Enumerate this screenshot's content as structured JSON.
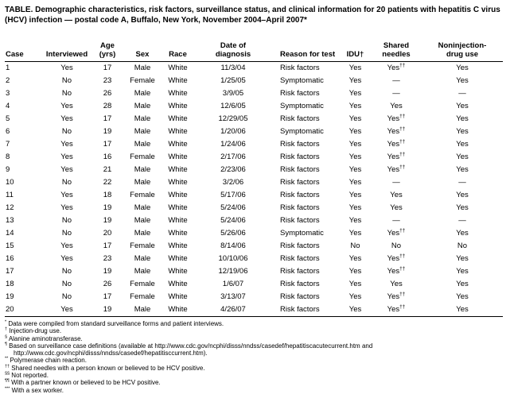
{
  "colors": {
    "text": "#000000",
    "background": "#ffffff",
    "rule": "#000000"
  },
  "title": "TABLE. Demographic characteristics, risk factors, surveillance status, and clinical information for 20 patients with hepatitis C virus (HCV) infection — postal code A, Buffalo, New York, November 2004–April 2007*",
  "table": {
    "headers": [
      "Case",
      "Interviewed",
      "Age\n(yrs)",
      "Sex",
      "Race",
      "Date of\ndiagnosis",
      "Reason for test",
      "IDU†",
      "Shared\nneedles",
      "Noninjection-\ndrug use"
    ],
    "column_aligns": [
      "left",
      "center",
      "center",
      "center",
      "center",
      "center",
      "left-indent",
      "center",
      "center",
      "center"
    ],
    "rows": [
      [
        "1",
        "Yes",
        "17",
        "Male",
        "White",
        "11/3/04",
        "Risk factors",
        "Yes",
        "Yes††",
        "Yes"
      ],
      [
        "2",
        "No",
        "23",
        "Female",
        "White",
        "1/25/05",
        "Symptomatic",
        "Yes",
        "—",
        "Yes"
      ],
      [
        "3",
        "No",
        "26",
        "Male",
        "White",
        "3/9/05",
        "Risk factors",
        "Yes",
        "—",
        "—"
      ],
      [
        "4",
        "Yes",
        "28",
        "Male",
        "White",
        "12/6/05",
        "Symptomatic",
        "Yes",
        "Yes",
        "Yes"
      ],
      [
        "5",
        "Yes",
        "17",
        "Male",
        "White",
        "12/29/05",
        "Risk factors",
        "Yes",
        "Yes††",
        "Yes"
      ],
      [
        "6",
        "No",
        "19",
        "Male",
        "White",
        "1/20/06",
        "Symptomatic",
        "Yes",
        "Yes††",
        "Yes"
      ],
      [
        "7",
        "Yes",
        "17",
        "Male",
        "White",
        "1/24/06",
        "Risk factors",
        "Yes",
        "Yes††",
        "Yes"
      ],
      [
        "8",
        "Yes",
        "16",
        "Female",
        "White",
        "2/17/06",
        "Risk factors",
        "Yes",
        "Yes††",
        "Yes"
      ],
      [
        "9",
        "Yes",
        "21",
        "Male",
        "White",
        "2/23/06",
        "Risk factors",
        "Yes",
        "Yes††",
        "Yes"
      ],
      [
        "10",
        "No",
        "22",
        "Male",
        "White",
        "3/2/06",
        "Risk factors",
        "Yes",
        "—",
        "—"
      ],
      [
        "11",
        "Yes",
        "18",
        "Female",
        "White",
        "5/17/06",
        "Risk factors",
        "Yes",
        "Yes",
        "Yes"
      ],
      [
        "12",
        "Yes",
        "19",
        "Male",
        "White",
        "5/24/06",
        "Risk factors",
        "Yes",
        "Yes",
        "Yes"
      ],
      [
        "13",
        "No",
        "19",
        "Male",
        "White",
        "5/24/06",
        "Risk factors",
        "Yes",
        "—",
        "—"
      ],
      [
        "14",
        "No",
        "20",
        "Male",
        "White",
        "5/26/06",
        "Symptomatic",
        "Yes",
        "Yes††",
        "Yes"
      ],
      [
        "15",
        "Yes",
        "17",
        "Female",
        "White",
        "8/14/06",
        "Risk factors",
        "No",
        "No",
        "No"
      ],
      [
        "16",
        "Yes",
        "23",
        "Male",
        "White",
        "10/10/06",
        "Risk factors",
        "Yes",
        "Yes††",
        "Yes"
      ],
      [
        "17",
        "No",
        "19",
        "Male",
        "White",
        "12/19/06",
        "Risk factors",
        "Yes",
        "Yes††",
        "Yes"
      ],
      [
        "18",
        "No",
        "26",
        "Female",
        "White",
        "1/6/07",
        "Risk factors",
        "Yes",
        "Yes",
        "Yes"
      ],
      [
        "19",
        "No",
        "17",
        "Female",
        "White",
        "3/13/07",
        "Risk factors",
        "Yes",
        "Yes††",
        "Yes"
      ],
      [
        "20",
        "Yes",
        "19",
        "Male",
        "White",
        "4/26/07",
        "Risk factors",
        "Yes",
        "Yes††",
        "Yes"
      ]
    ]
  },
  "footnotes": [
    {
      "marker": "*",
      "text": "Data were compiled from standard surveillance forms and patient interviews."
    },
    {
      "marker": "†",
      "text": "Injection-drug use."
    },
    {
      "marker": "§",
      "text": "Alanine aminotransferase."
    },
    {
      "marker": "¶",
      "text": "Based on surveillance case definitions (available at http://www.cdc.gov/ncphi/disss/nndss/casedef/hepatitiscacutecurrent.htm and http://www.cdc.gov/ncphi/disss/nndss/casedef/hepatitisccurrent.htm)."
    },
    {
      "marker": "**",
      "text": "Polymerase chain reaction."
    },
    {
      "marker": "††",
      "text": "Shared needles with a person known or believed to be HCV positive."
    },
    {
      "marker": "§§",
      "text": "Not reported."
    },
    {
      "marker": "¶¶",
      "text": "With a partner known or believed to be HCV positive."
    },
    {
      "marker": "***",
      "text": "With a sex worker."
    }
  ]
}
